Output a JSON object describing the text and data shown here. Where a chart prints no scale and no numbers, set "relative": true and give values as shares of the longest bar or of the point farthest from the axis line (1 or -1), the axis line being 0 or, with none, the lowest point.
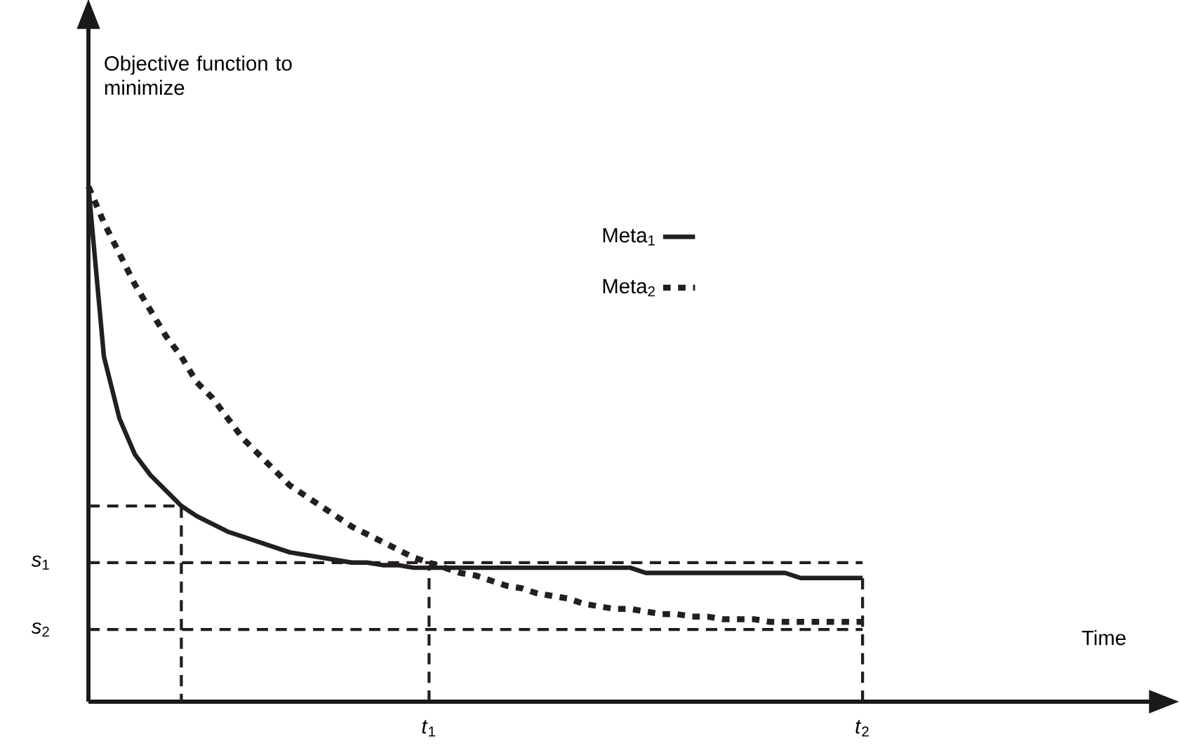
{
  "chart_data": {
    "type": "line",
    "relative": true,
    "ylabel": "Objective function to minimize",
    "annotations": [
      "Time"
    ],
    "categories": [
      null,
      null,
      null,
      null,
      null,
      null,
      null,
      null,
      null,
      null,
      null,
      null,
      null,
      null,
      null,
      null,
      null,
      null,
      null,
      null,
      null,
      null,
      "*t*$_{1}$",
      null,
      null,
      null,
      null,
      null,
      null,
      null,
      null,
      null,
      null,
      null,
      null,
      null,
      null,
      null,
      null,
      null,
      null,
      null,
      null,
      null,
      null,
      null,
      null,
      null,
      null,
      null,
      "*t*$_{2}$"
    ],
    "series": [
      {
        "name": "Meta$_{1}$",
        "color": "#231f20",
        "line_style": "solid",
        "values": [
          1.0,
          0.67,
          0.55,
          0.48,
          0.44,
          0.41,
          0.38,
          0.36,
          0.345,
          0.33,
          0.32,
          0.31,
          0.3,
          0.29,
          0.285,
          0.28,
          0.275,
          0.27,
          0.27,
          0.265,
          0.265,
          0.26,
          0.26,
          0.26,
          0.26,
          0.26,
          0.26,
          0.26,
          0.26,
          0.26,
          0.26,
          0.26,
          0.26,
          0.26,
          0.26,
          0.26,
          0.25,
          0.25,
          0.25,
          0.25,
          0.25,
          0.25,
          0.25,
          0.25,
          0.25,
          0.25,
          0.24,
          0.24,
          0.24,
          0.24,
          0.24
        ]
      },
      {
        "name": "Meta$_{2}$",
        "color": "#231f20",
        "line_style": "dotted",
        "values": [
          1.0,
          0.93,
          0.87,
          0.81,
          0.76,
          0.71,
          0.67,
          0.62,
          0.59,
          0.55,
          0.51,
          0.48,
          0.45,
          0.42,
          0.4,
          0.38,
          0.36,
          0.34,
          0.325,
          0.31,
          0.295,
          0.28,
          0.27,
          0.26,
          0.25,
          0.245,
          0.235,
          0.225,
          0.22,
          0.21,
          0.205,
          0.2,
          0.19,
          0.185,
          0.18,
          0.18,
          0.175,
          0.17,
          0.17,
          0.165,
          0.165,
          0.16,
          0.16,
          0.16,
          0.155,
          0.155,
          0.155,
          0.155,
          0.155,
          0.155,
          0.155
        ]
      }
    ],
    "ref_lines": [
      {
        "axis": "x",
        "value": "*t*$_{1}$",
        "line_style": "dashed",
        "color": "#231f20"
      },
      {
        "axis": "x",
        "value": "*t*$_{2}$",
        "line_style": "dashed",
        "color": "#231f20"
      },
      {
        "axis": "y",
        "value": 0.38,
        "line_style": "dashed",
        "color": "#231f20"
      },
      {
        "axis": "y",
        "value": 0.27,
        "label": "*s*$_{1}$",
        "line_style": "dashed",
        "color": "#231f20"
      },
      {
        "axis": "y",
        "value": 0.14,
        "label": "*s*$_{2}$",
        "line_style": "dashed",
        "color": "#231f20"
      }
    ],
    "legend": "top",
    "grid": false
  }
}
